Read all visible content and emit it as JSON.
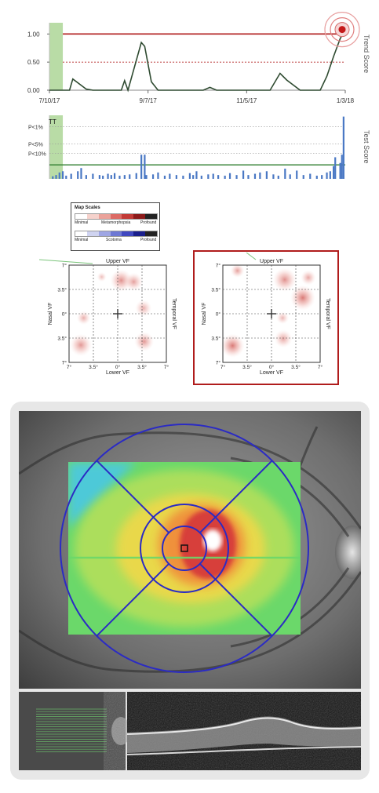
{
  "colors": {
    "trend_line": "#2e4a30",
    "threshold_line": "#b01c1c",
    "baseline_band": "#b9dca6",
    "bar": "#4a78c4",
    "significance_line": "#2e7d2e",
    "dot": "#c41a1a",
    "selected_border": "#b01c1c"
  },
  "chart_data": [
    {
      "type": "line",
      "title": "",
      "ylabel": "Trend Score",
      "ylim": [
        0,
        1.2
      ],
      "y_ticks": [
        "0.00",
        "0.50",
        "1.00"
      ],
      "x_tick_labels": [
        "7/10/17",
        "9/7/17",
        "11/5/17",
        "1/3/18"
      ],
      "x_range_days": [
        0,
        177
      ],
      "x_tick_days": [
        0,
        59,
        118,
        177
      ],
      "threshold": 1.0,
      "reference_line": 0.5,
      "baseline_band_days": [
        0,
        8
      ],
      "series": [
        {
          "x_days": [
            0,
            8,
            12,
            14,
            22,
            26,
            30,
            43,
            45,
            47,
            55,
            57,
            61,
            65,
            73,
            92,
            96,
            100,
            111,
            132,
            138,
            142,
            150,
            162,
            166,
            170,
            174,
            177
          ],
          "values": [
            0,
            0,
            0,
            0.2,
            0.02,
            0,
            0,
            0,
            0.17,
            0,
            0.85,
            0.78,
            0.15,
            0,
            0,
            0,
            0.05,
            0,
            0,
            0,
            0.3,
            0.18,
            0,
            0,
            0.25,
            0.6,
            0.92,
            1.08
          ]
        }
      ],
      "latest_point_value": 1.08
    },
    {
      "type": "bar",
      "title": "",
      "ylabel": "Test Score",
      "y_tick_labels": [
        "P<1%",
        "P<5%",
        "P<10%"
      ],
      "ylim": [
        0,
        1.0
      ],
      "threshold_levels": [
        0.82,
        0.55,
        0.4
      ],
      "significance_line": 0.22,
      "x_range_days": [
        0,
        177
      ],
      "baseline_band_days": [
        0,
        8
      ],
      "markers_text": "TT",
      "x_days": [
        2,
        4,
        6,
        8,
        10,
        13,
        17,
        19,
        22,
        26,
        30,
        32,
        35,
        37,
        39,
        42,
        45,
        48,
        52,
        55,
        57,
        58,
        62,
        65,
        69,
        72,
        76,
        80,
        84,
        86,
        88,
        91,
        95,
        98,
        101,
        105,
        108,
        112,
        116,
        119,
        123,
        126,
        130,
        134,
        137,
        141,
        144,
        148,
        152,
        156,
        160,
        163,
        166,
        168,
        170,
        171,
        174,
        175,
        176
      ],
      "values": [
        0.04,
        0.06,
        0.1,
        0.12,
        0.05,
        0.08,
        0.12,
        0.17,
        0.06,
        0.08,
        0.06,
        0.05,
        0.08,
        0.06,
        0.09,
        0.05,
        0.06,
        0.07,
        0.09,
        0.38,
        0.38,
        0.06,
        0.07,
        0.1,
        0.05,
        0.08,
        0.06,
        0.05,
        0.09,
        0.06,
        0.12,
        0.05,
        0.07,
        0.08,
        0.06,
        0.05,
        0.09,
        0.06,
        0.13,
        0.06,
        0.08,
        0.1,
        0.12,
        0.07,
        0.05,
        0.16,
        0.07,
        0.13,
        0.06,
        0.08,
        0.05,
        0.06,
        0.1,
        0.12,
        0.2,
        0.34,
        0.25,
        0.38,
        0.98
      ]
    }
  ],
  "legend": {
    "title": "Map Scales",
    "metamorphopsia": {
      "minimal": "Minimal",
      "label": "Metamorphopsia",
      "profound": "Profound",
      "colors": [
        "#ffffff",
        "#f6d2cc",
        "#eba29a",
        "#dc6a64",
        "#c23a36",
        "#8c1a1a",
        "#222222"
      ]
    },
    "scotoma": {
      "minimal": "Minimal",
      "label": "Scotoma",
      "profound": "Profound",
      "colors": [
        "#ffffff",
        "#cfd3f0",
        "#9fa6e4",
        "#6e78d4",
        "#4048c0",
        "#1a1f8c",
        "#222222"
      ]
    }
  },
  "vf_maps": [
    {
      "upper": "Upper VF",
      "lower": "Lower VF",
      "nasal": "Nasal VF",
      "temporal": "Temporal VF",
      "y_ticks": [
        "7°",
        "3.5°",
        "0°",
        "3.5°",
        "7°"
      ],
      "x_ticks": [
        "7°",
        "3.5°",
        "0°",
        "3.5°",
        "7°"
      ],
      "spots": [
        {
          "x": 0.5,
          "y": 4.8,
          "r": 1.6,
          "a": 0.55
        },
        {
          "x": 2.3,
          "y": 4.6,
          "r": 1.3,
          "a": 0.45
        },
        {
          "x": 3.7,
          "y": 0.8,
          "r": 1.2,
          "a": 0.35
        },
        {
          "x": -4.9,
          "y": -0.6,
          "r": 1.0,
          "a": 0.35
        },
        {
          "x": -5.3,
          "y": -4.5,
          "r": 1.6,
          "a": 0.5
        },
        {
          "x": 3.8,
          "y": -4.0,
          "r": 1.4,
          "a": 0.5
        },
        {
          "x": -2.3,
          "y": 5.3,
          "r": 0.7,
          "a": 0.25
        }
      ]
    },
    {
      "upper": "Upper VF",
      "lower": "Lower VF",
      "nasal": "Nasal VF",
      "temporal": "Temporal VF",
      "y_ticks": [
        "7°",
        "3.5°",
        "0°",
        "3.5°",
        "7°"
      ],
      "x_ticks": [
        "7°",
        "3.5°",
        "0°",
        "3.5°",
        "7°"
      ],
      "spots": [
        {
          "x": -4.9,
          "y": 6.2,
          "r": 1.0,
          "a": 0.45
        },
        {
          "x": 1.9,
          "y": 4.9,
          "r": 1.7,
          "a": 0.55
        },
        {
          "x": 4.5,
          "y": 2.3,
          "r": 1.8,
          "a": 0.7
        },
        {
          "x": 5.3,
          "y": 5.2,
          "r": 1.1,
          "a": 0.4
        },
        {
          "x": 1.6,
          "y": -0.6,
          "r": 0.9,
          "a": 0.3
        },
        {
          "x": -5.6,
          "y": -4.6,
          "r": 1.7,
          "a": 0.7
        },
        {
          "x": 1.7,
          "y": -3.6,
          "r": 1.3,
          "a": 0.4
        }
      ]
    }
  ],
  "retina": {
    "colors": [
      "#4ec9d8",
      "#6bd86a",
      "#b8e05a",
      "#f0d84a",
      "#f08a3a",
      "#d63a3a",
      "#ffffff"
    ],
    "ring_color": "#2b2bc4"
  }
}
